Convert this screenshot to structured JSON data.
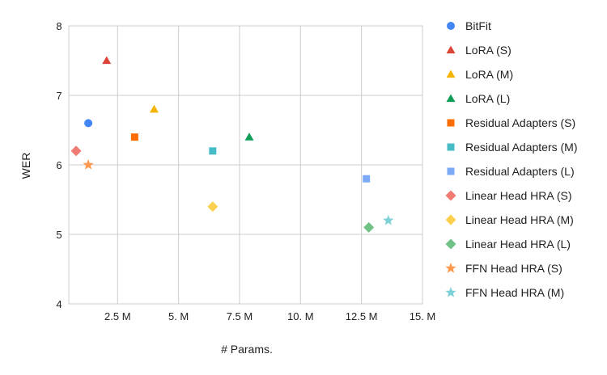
{
  "chart_data": {
    "type": "scatter",
    "xlabel": "# Params.",
    "ylabel": "WER",
    "xlim": [
      0.5,
      15
    ],
    "ylim": [
      4,
      8
    ],
    "x_ticks": [
      {
        "value": 2.5,
        "label": "2.5 M"
      },
      {
        "value": 5,
        "label": "5. M"
      },
      {
        "value": 7.5,
        "label": "7.5 M"
      },
      {
        "value": 10,
        "label": "10. M"
      },
      {
        "value": 12.5,
        "label": "12.5 M"
      },
      {
        "value": 15,
        "label": "15. M"
      }
    ],
    "y_ticks": [
      {
        "value": 4,
        "label": "4"
      },
      {
        "value": 5,
        "label": "5"
      },
      {
        "value": 6,
        "label": "6"
      },
      {
        "value": 7,
        "label": "7"
      },
      {
        "value": 8,
        "label": "8"
      }
    ],
    "grid": true,
    "legend_position": "right",
    "series": [
      {
        "name": "BitFit",
        "marker": "circle",
        "color": "#4285F4",
        "x": 1.3,
        "y": 6.6
      },
      {
        "name": "LoRA (S)",
        "marker": "triangle",
        "color": "#DB4437",
        "x": 2.05,
        "y": 7.5
      },
      {
        "name": "LoRA (M)",
        "marker": "triangle",
        "color": "#F4B400",
        "x": 4.0,
        "y": 6.8
      },
      {
        "name": "LoRA (L)",
        "marker": "triangle",
        "color": "#0F9D58",
        "x": 7.9,
        "y": 6.4
      },
      {
        "name": "Residual Adapters (S)",
        "marker": "square",
        "color": "#FF6D00",
        "x": 3.2,
        "y": 6.4
      },
      {
        "name": "Residual Adapters (M)",
        "marker": "square",
        "color": "#46BDC6",
        "x": 6.4,
        "y": 6.2
      },
      {
        "name": "Residual Adapters (L)",
        "marker": "square",
        "color": "#7BAAF7",
        "x": 12.7,
        "y": 5.8
      },
      {
        "name": "Linear Head HRA (S)",
        "marker": "diamond",
        "color": "#F07B72",
        "x": 0.8,
        "y": 6.2
      },
      {
        "name": "Linear Head HRA (M)",
        "marker": "diamond",
        "color": "#FCD04F",
        "x": 6.4,
        "y": 5.4
      },
      {
        "name": "Linear Head HRA (L)",
        "marker": "diamond",
        "color": "#71C287",
        "x": 12.8,
        "y": 5.1
      },
      {
        "name": "FFN Head HRA (S)",
        "marker": "star",
        "color": "#FF994D",
        "x": 1.3,
        "y": 6.0
      },
      {
        "name": "FFN Head HRA (M)",
        "marker": "star",
        "color": "#7ED1D7",
        "x": 13.6,
        "y": 5.2
      }
    ]
  }
}
